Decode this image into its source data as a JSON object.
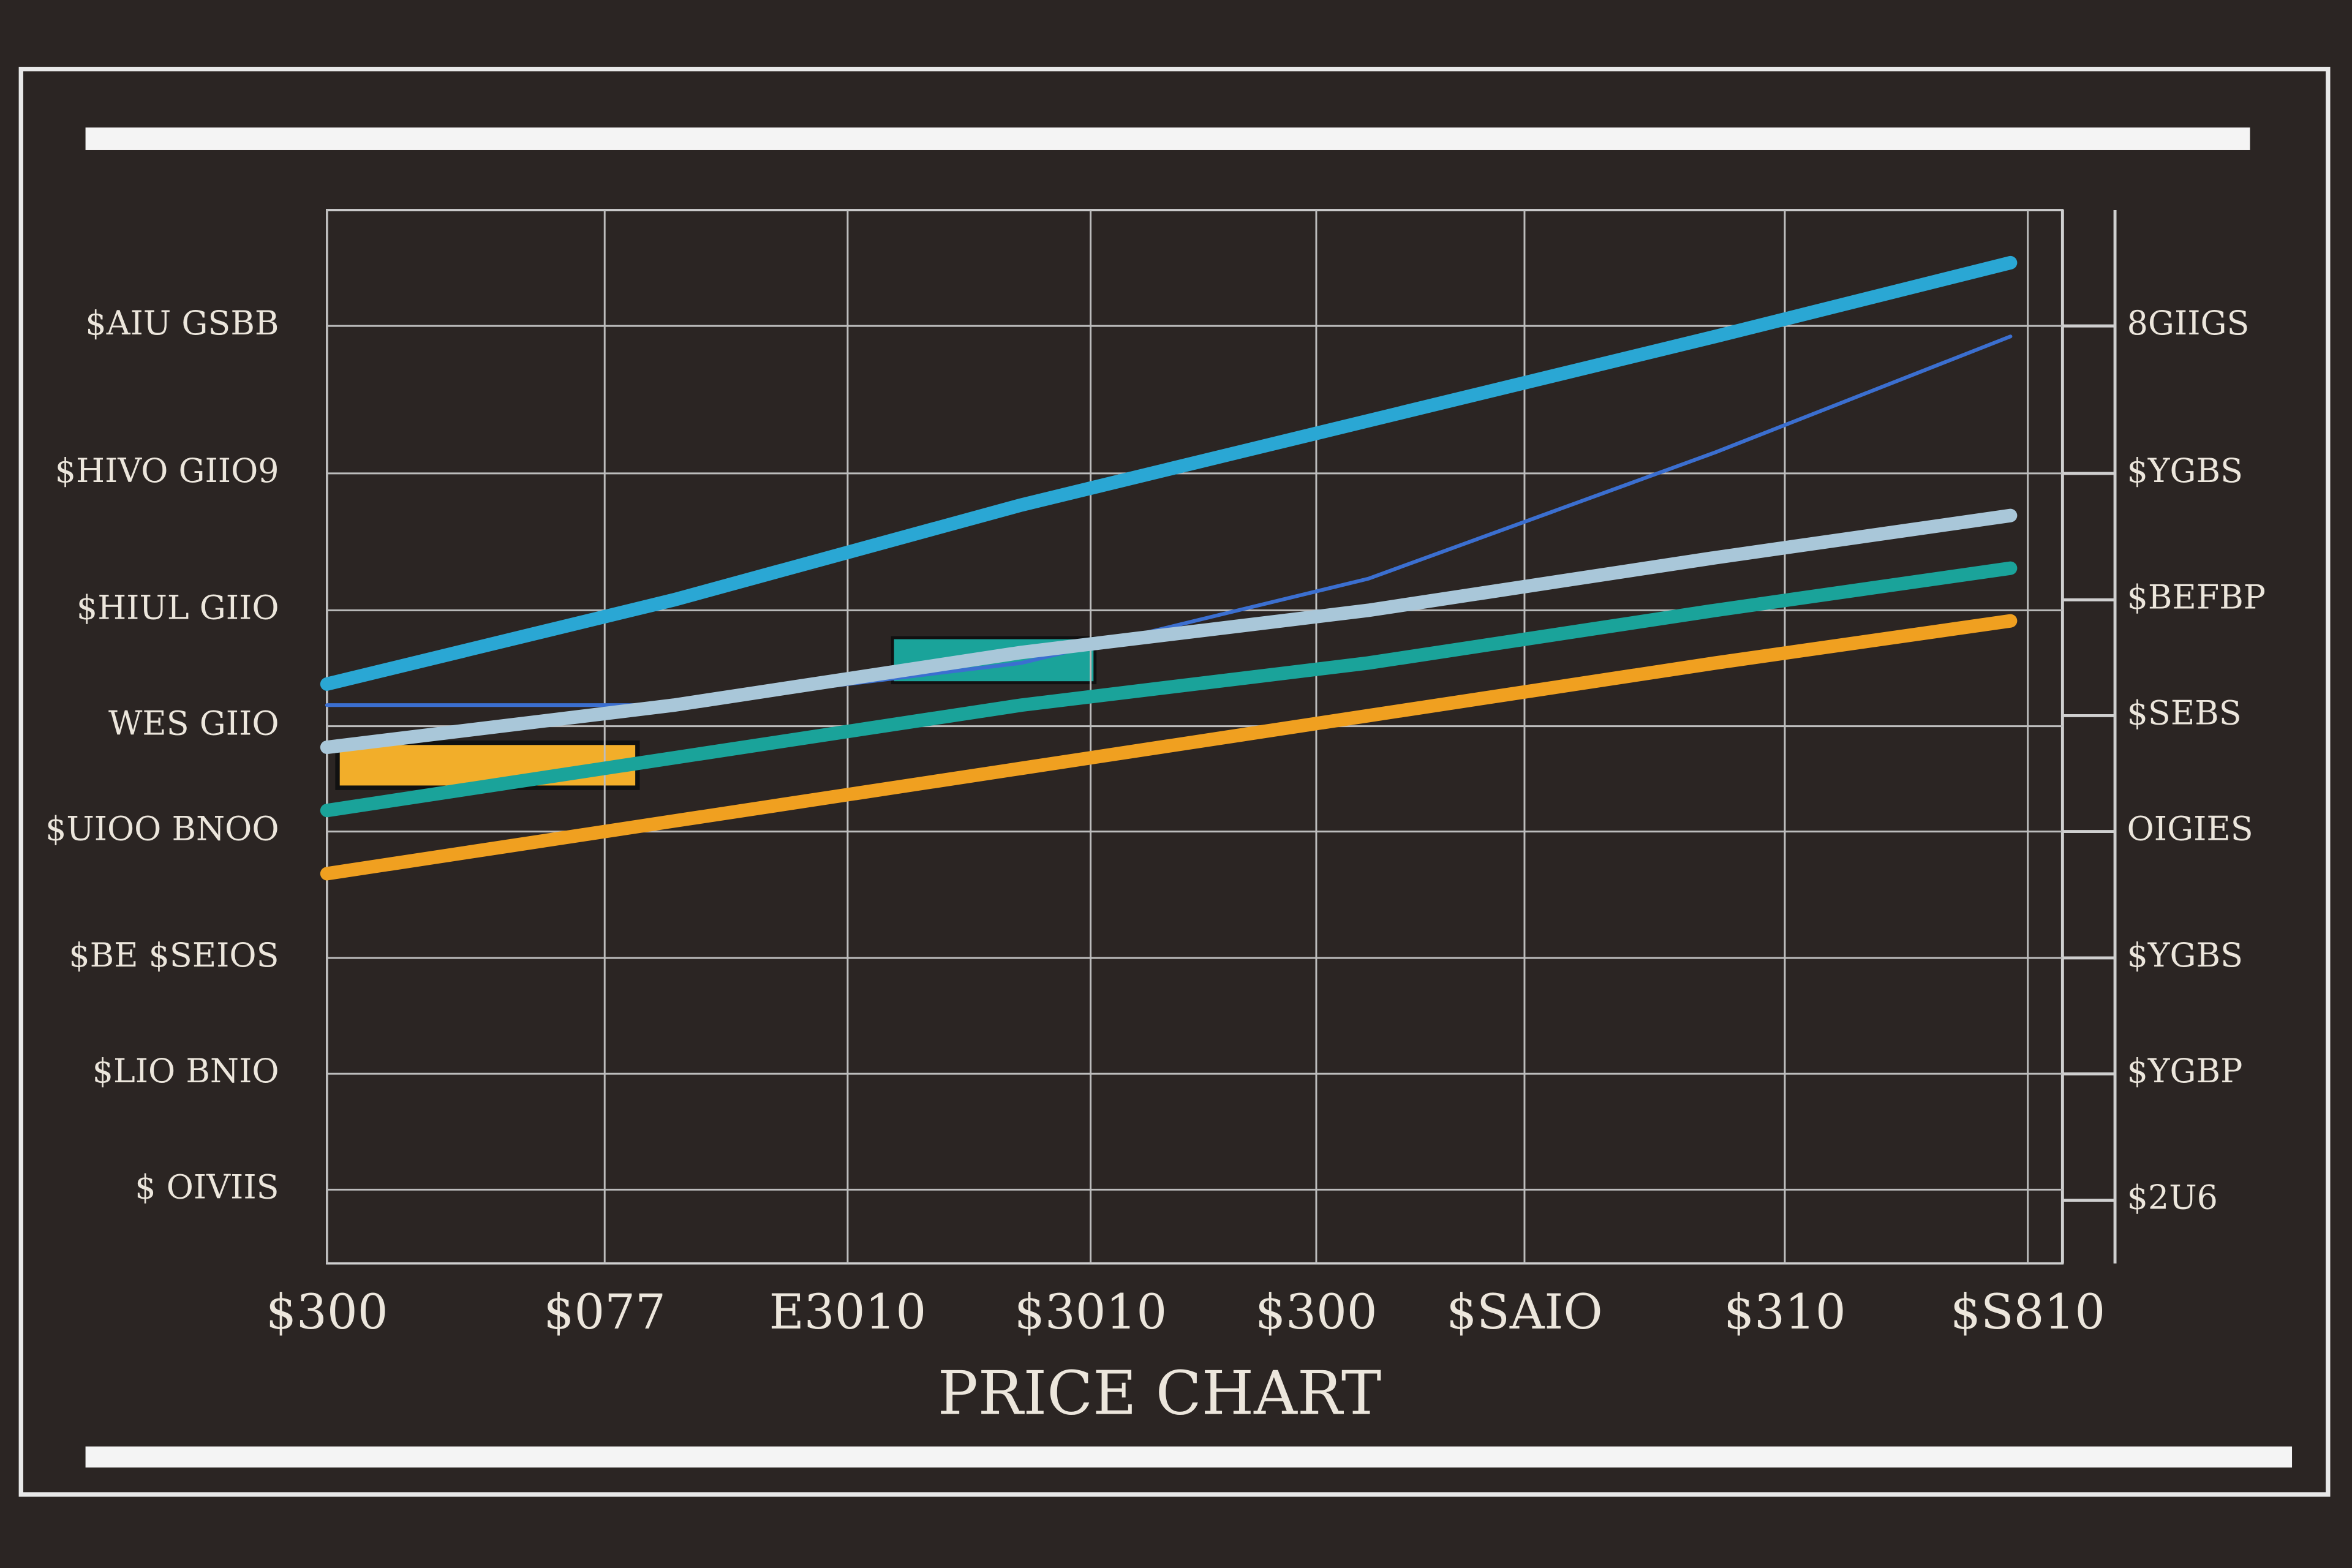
{
  "chart_data": {
    "type": "line",
    "xlabel": "PRICE CHART",
    "x": [
      0,
      20,
      40,
      60,
      80,
      97
    ],
    "xlim": [
      0,
      100
    ],
    "xticks": [
      {
        "value": 0,
        "label": "$300"
      },
      {
        "value": 16,
        "label": "$077"
      },
      {
        "value": 30,
        "label": "E3010"
      },
      {
        "value": 44,
        "label": "$3010"
      },
      {
        "value": 57,
        "label": "$300"
      },
      {
        "value": 69,
        "label": "$SAIO"
      },
      {
        "value": 84,
        "label": "$310"
      },
      {
        "value": 98,
        "label": "$S810"
      }
    ],
    "ylim": [
      0,
      100
    ],
    "yticks": [
      {
        "value": 7,
        "label": "$ OIVIIS"
      },
      {
        "value": 18,
        "label": "$LIO BNIO"
      },
      {
        "value": 29,
        "label": "$BE $SEIOS"
      },
      {
        "value": 41,
        "label": "$UIOO BNOO"
      },
      {
        "value": 51,
        "label": "WES GIIO"
      },
      {
        "value": 62,
        "label": "$HIUL GIIO"
      },
      {
        "value": 75,
        "label": "$HIVO GIIO9"
      },
      {
        "value": 89,
        "label": "$AIU GSBB"
      }
    ],
    "y2lim": [
      0,
      100
    ],
    "y2ticks": [
      {
        "value": 6,
        "label": "$2U6"
      },
      {
        "value": 18,
        "label": "$YGBP"
      },
      {
        "value": 29,
        "label": "$YGBS"
      },
      {
        "value": 41,
        "label": "OIGIES"
      },
      {
        "value": 52,
        "label": "$SEBS"
      },
      {
        "value": 63,
        "label": "$BEFBP"
      },
      {
        "value": 75,
        "label": "$YGBS"
      },
      {
        "value": 89,
        "label": "8GIIGS"
      }
    ],
    "grid": true,
    "series": [
      {
        "color": "#2aa7d4",
        "values": [
          55,
          63,
          72,
          80,
          88,
          95
        ]
      },
      {
        "color": "#3b6fd0",
        "values": [
          53,
          53,
          57,
          65,
          77,
          88
        ]
      },
      {
        "color": "#a9c7d9",
        "values": [
          49,
          53,
          58,
          62,
          67,
          71
        ]
      },
      {
        "color": "#1aa39a",
        "values": [
          43,
          48,
          53,
          57,
          62,
          66
        ]
      },
      {
        "color": "#f0a020",
        "values": [
          37,
          42,
          47,
          52,
          57,
          61
        ]
      }
    ]
  }
}
